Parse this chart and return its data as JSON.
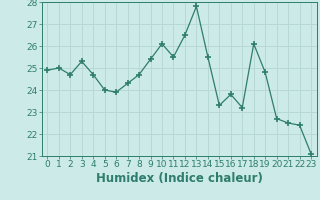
{
  "x": [
    0,
    1,
    2,
    3,
    4,
    5,
    6,
    7,
    8,
    9,
    10,
    11,
    12,
    13,
    14,
    15,
    16,
    17,
    18,
    19,
    20,
    21,
    22,
    23
  ],
  "y": [
    24.9,
    25.0,
    24.7,
    25.3,
    24.7,
    24.0,
    23.9,
    24.3,
    24.7,
    25.4,
    26.1,
    25.5,
    26.5,
    27.8,
    25.5,
    23.3,
    23.8,
    23.2,
    26.1,
    24.8,
    22.7,
    22.5,
    22.4,
    21.1
  ],
  "line_color": "#2e7d6e",
  "marker": "+",
  "marker_size": 4,
  "bg_color": "#cceae7",
  "grid_color": "#b8d8d5",
  "xlabel": "Humidex (Indice chaleur)",
  "ylim": [
    21,
    28
  ],
  "xlim": [
    -0.5,
    23.5
  ],
  "yticks": [
    21,
    22,
    23,
    24,
    25,
    26,
    27,
    28
  ],
  "xticks": [
    0,
    1,
    2,
    3,
    4,
    5,
    6,
    7,
    8,
    9,
    10,
    11,
    12,
    13,
    14,
    15,
    16,
    17,
    18,
    19,
    20,
    21,
    22,
    23
  ],
  "tick_label_size": 6.5,
  "xlabel_size": 8.5,
  "xlabel_color": "#2e7d6e",
  "tick_color": "#2e7d6e",
  "spine_color": "#2e7d6e"
}
